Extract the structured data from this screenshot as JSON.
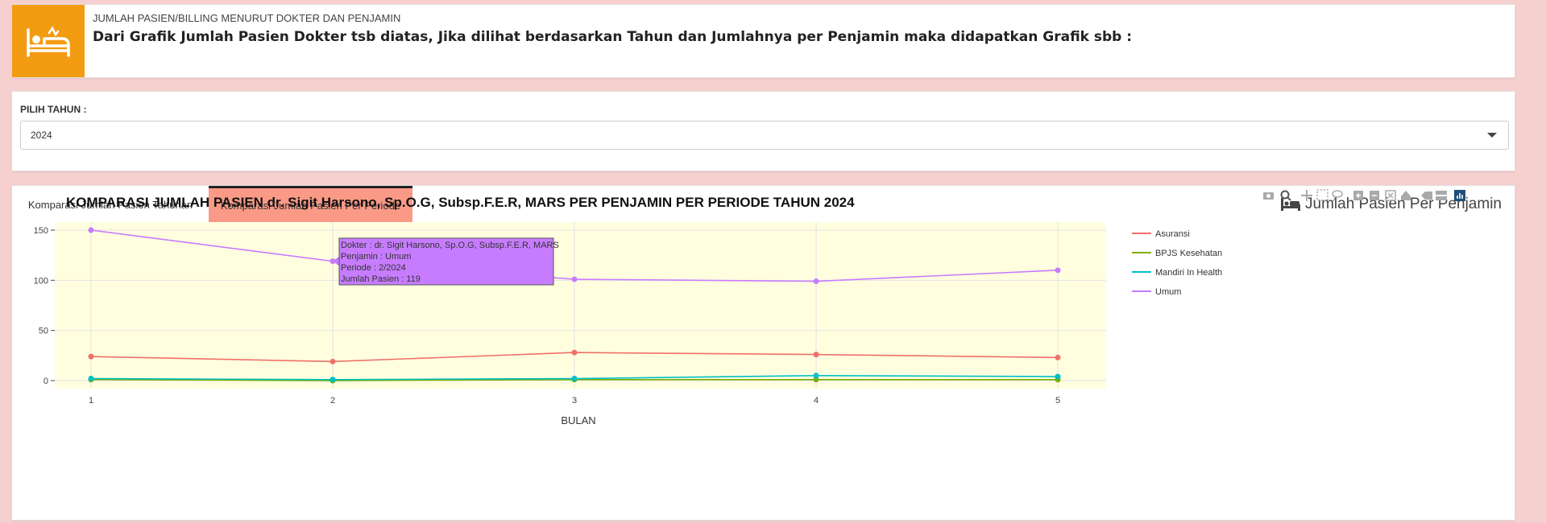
{
  "info": {
    "subtitle": "JUMLAH PASIEN/BILLING MENURUT DOKTER DAN PENJAMIN",
    "text": "Dari Grafik Jumlah Pasien Dokter tsb diatas, Jika dilihat berdasarkan Tahun dan Jumlahnya per Penjamin maka didapatkan Grafik sbb :",
    "icon": "bed-icon",
    "accent": "#f39c12"
  },
  "year_picker": {
    "label": "PILIH TAHUN :",
    "value": "2024"
  },
  "tabs": [
    {
      "label": "Komparasi Jumlah Pasien Tahunan",
      "active": false
    },
    {
      "label": "Komparasi Jumlah Pasien Per Periode",
      "active": true
    }
  ],
  "panel_title": "Jumlah Pasien Per Penjamin",
  "tooltip": {
    "lines": [
      "Dokter : dr. Sigit Harsono, Sp.O.G, Subsp.F.E.R, MARS",
      "Penjamin : Umum",
      "Periode : 2/2024",
      "Jumlah Pasien : 119"
    ],
    "series": "Umum",
    "x": 2
  },
  "chart_data": {
    "type": "line",
    "title": "KOMPARASI JUMLAH PASIEN dr. Sigit Harsono, Sp.O.G, Subsp.F.E.R, MARS PER PENJAMIN PER PERIODE TAHUN 2024",
    "xlabel": "BULAN",
    "ylabel": "",
    "x": [
      1,
      2,
      3,
      4,
      5
    ],
    "xlim": [
      0.85,
      5.2
    ],
    "ylim": [
      -8,
      158
    ],
    "yticks": [
      0,
      50,
      100,
      150
    ],
    "grid": true,
    "legend_position": "right",
    "plot_background": "#ffffe0",
    "series": [
      {
        "name": "Asuransi",
        "color": "#f0706a",
        "values": [
          24,
          19,
          28,
          26,
          23
        ]
      },
      {
        "name": "BPJS Kesehatan",
        "color": "#7cae00",
        "values": [
          1,
          0,
          1,
          1,
          1
        ]
      },
      {
        "name": "Mandiri In Health",
        "color": "#00bfc4",
        "values": [
          2,
          1,
          2,
          5,
          4
        ]
      },
      {
        "name": "Umum",
        "color": "#c77cff",
        "values": [
          150,
          119,
          101,
          99,
          110
        ]
      }
    ]
  }
}
